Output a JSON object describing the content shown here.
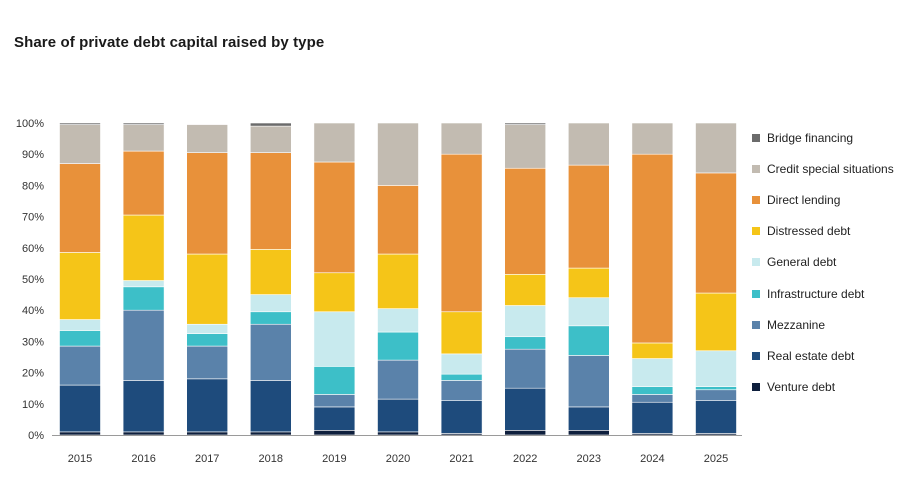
{
  "chart_data": {
    "type": "bar",
    "stacked": true,
    "title": "Share of private debt capital raised by type",
    "xlabel": "",
    "ylabel": "",
    "ylim": [
      0,
      100
    ],
    "yticks": [
      "0%",
      "10%",
      "20%",
      "30%",
      "40%",
      "50%",
      "60%",
      "70%",
      "80%",
      "90%",
      "100%"
    ],
    "categories": [
      "2015",
      "2016",
      "2017",
      "2018",
      "2019",
      "2020",
      "2021",
      "2022",
      "2023",
      "2024",
      "2025"
    ],
    "legend_position": "right",
    "series": [
      {
        "name": "Venture debt",
        "color": "#0e1f3d",
        "values": [
          1,
          1,
          1,
          1,
          1.5,
          1,
          0.5,
          1.5,
          1.5,
          0.5,
          0.5
        ]
      },
      {
        "name": "Real estate debt",
        "color": "#1e4b7c",
        "values": [
          15,
          16.5,
          17,
          16.5,
          7.5,
          10.5,
          10.5,
          13.5,
          7.5,
          10,
          10.5
        ]
      },
      {
        "name": "Mezzanine",
        "color": "#5a82aa",
        "values": [
          12.5,
          22.5,
          10.5,
          18,
          4,
          12.5,
          6.5,
          12.5,
          16.5,
          2.5,
          3.5
        ]
      },
      {
        "name": "Infrastructure debt",
        "color": "#3dbfc8",
        "values": [
          5,
          7.5,
          4,
          4,
          9,
          9,
          2,
          4,
          9.5,
          2.5,
          1
        ]
      },
      {
        "name": "General debt",
        "color": "#c8eaee",
        "values": [
          3.5,
          2,
          3,
          5.5,
          17.5,
          7.5,
          6.5,
          10,
          9,
          9,
          11.5
        ]
      },
      {
        "name": "Distressed debt",
        "color": "#f5c518",
        "values": [
          21.5,
          21,
          22.5,
          14.5,
          12.5,
          17.5,
          13.5,
          10,
          9.5,
          5,
          18.5
        ]
      },
      {
        "name": "Direct lending",
        "color": "#e8913a",
        "values": [
          28.5,
          20.5,
          32.5,
          31,
          35.5,
          22,
          50.5,
          34,
          33,
          60.5,
          38.5
        ]
      },
      {
        "name": "Credit special situations",
        "color": "#c2bbb1",
        "values": [
          12.5,
          8.5,
          9,
          8.5,
          12.5,
          20,
          10,
          14,
          13.5,
          10,
          16
        ]
      },
      {
        "name": "Bridge financing",
        "color": "#6b6b6b",
        "values": [
          0.5,
          0.5,
          0,
          1,
          0,
          0,
          0,
          0.5,
          0,
          0,
          0
        ]
      }
    ]
  }
}
